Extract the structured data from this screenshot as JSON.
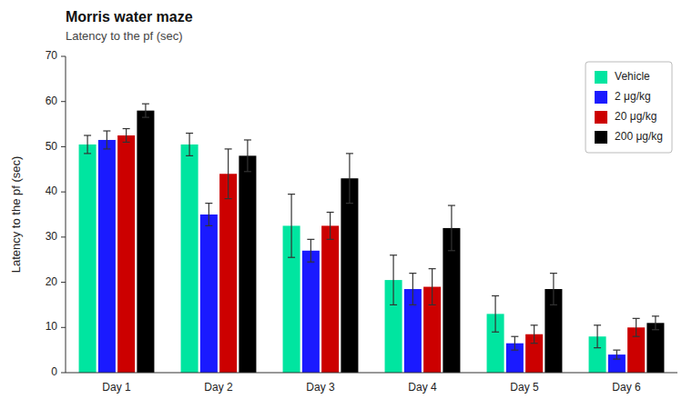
{
  "chart_data": {
    "type": "bar",
    "title": "Morris water maze",
    "subtitle": "Latency to the pf (sec)",
    "ylabel": "Latency to the pf (sec)",
    "categories": [
      "Day 1",
      "Day 2",
      "Day 3",
      "Day 4",
      "Day 5",
      "Day 6"
    ],
    "series": [
      {
        "name": "Vehicle",
        "color": "#00e5a0",
        "values": [
          50.5,
          50.5,
          32.5,
          20.5,
          13.0,
          8.0
        ],
        "errors": [
          2.0,
          2.5,
          7.0,
          5.5,
          4.0,
          2.5
        ]
      },
      {
        "name": "2 μg/kg",
        "color": "#1a1aff",
        "values": [
          51.5,
          35.0,
          27.0,
          18.5,
          6.5,
          4.0
        ],
        "errors": [
          2.0,
          2.5,
          2.5,
          3.5,
          1.5,
          1.0
        ]
      },
      {
        "name": "20 μg/kg",
        "color": "#cc0000",
        "values": [
          52.5,
          44.0,
          32.5,
          19.0,
          8.5,
          10.0
        ],
        "errors": [
          1.5,
          5.5,
          3.0,
          4.0,
          2.0,
          2.0
        ]
      },
      {
        "name": "200 μg/kg",
        "color": "#000000",
        "values": [
          58.0,
          48.0,
          43.0,
          32.0,
          18.5,
          11.0
        ],
        "errors": [
          1.5,
          3.5,
          5.5,
          5.0,
          3.5,
          1.5
        ]
      }
    ],
    "ylim": [
      0,
      70
    ],
    "yticks": [
      0,
      10,
      20,
      30,
      40,
      50,
      60,
      70
    ],
    "grid": false,
    "legend": "upper right"
  }
}
